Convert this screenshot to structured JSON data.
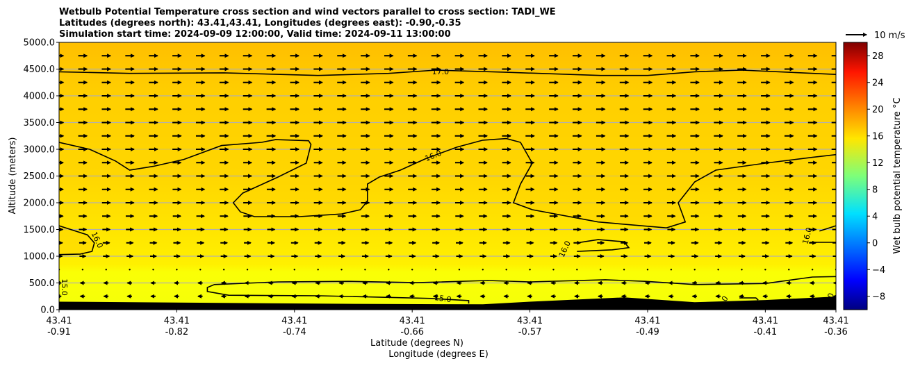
{
  "chart_data": {
    "type": "heatmap",
    "title_lines": [
      "Wetbulb Potential Temperature cross section and wind vectors parallel to cross section: TADI_WE",
      "Latitudes (degrees north): 43.41,43.41, Longitudes (degrees east): -0.90,-0.35",
      "Simulation start time: 2024-09-09 12:00:00, Valid time: 2024-09-11 13:00:00"
    ],
    "ylabel": "Altitude (meters)",
    "xlabel_lines": [
      "Latitude (degrees N)",
      "Longitude (degrees E)"
    ],
    "x_unit": "section point index",
    "xlim": [
      0,
      33
    ],
    "ylim": [
      0,
      5000
    ],
    "yticks": [
      "0.0",
      "500.0",
      "1000.0",
      "1500.0",
      "2000.0",
      "2500.0",
      "3000.0",
      "3500.0",
      "4000.0",
      "4500.0",
      "5000.0"
    ],
    "xticks": [
      {
        "x": 0,
        "lat": "43.41",
        "lon": "-0.91"
      },
      {
        "x": 5,
        "lat": "43.41",
        "lon": "-0.82"
      },
      {
        "x": 10,
        "lat": "43.41",
        "lon": "-0.74"
      },
      {
        "x": 15,
        "lat": "43.41",
        "lon": "-0.66"
      },
      {
        "x": 20,
        "lat": "43.41",
        "lon": "-0.57"
      },
      {
        "x": 25,
        "lat": "43.41",
        "lon": "-0.49"
      },
      {
        "x": 30,
        "lat": "43.41",
        "lon": "-0.41"
      },
      {
        "x": 33,
        "lat": "43.41",
        "lon": "-0.36"
      }
    ],
    "grid": "horizontal",
    "colorbar": {
      "label": "Wet bulb potential temperature $^\\circ$C",
      "label_text": "Wet bulb potential temperature °C",
      "range": [
        -10,
        30
      ],
      "ticks": [
        "-8",
        "-4",
        "0",
        "4",
        "8",
        "12",
        "16",
        "20",
        "24",
        "28"
      ],
      "colormap": "jet"
    },
    "field_profile": [
      {
        "alt": 0,
        "value": 14.6
      },
      {
        "alt": 700,
        "value": 14.8
      },
      {
        "alt": 850,
        "value": 15.6
      },
      {
        "alt": 1500,
        "value": 16.0
      },
      {
        "alt": 2500,
        "value": 16.6
      },
      {
        "alt": 4000,
        "value": 16.9
      },
      {
        "alt": 5000,
        "value": 17.5
      }
    ],
    "wind_key": {
      "label": "10 m/s",
      "speed": 10
    },
    "wind_rows": [
      {
        "alt": 4750,
        "u": 4.2
      },
      {
        "alt": 4500,
        "u": 4.2
      },
      {
        "alt": 4250,
        "u": 4.2
      },
      {
        "alt": 4000,
        "u": 4.2
      },
      {
        "alt": 3750,
        "u": 4.2
      },
      {
        "alt": 3500,
        "u": 4.2
      },
      {
        "alt": 3250,
        "u": 4.2
      },
      {
        "alt": 3000,
        "u": 4.2
      },
      {
        "alt": 2750,
        "u": 4.0
      },
      {
        "alt": 2500,
        "u": 4.0
      },
      {
        "alt": 2250,
        "u": 4.0
      },
      {
        "alt": 2000,
        "u": 4.0
      },
      {
        "alt": 1750,
        "u": 3.8
      },
      {
        "alt": 1500,
        "u": 3.6
      },
      {
        "alt": 1250,
        "u": 3.3
      },
      {
        "alt": 1000,
        "u": 3.0
      },
      {
        "alt": 750,
        "u": 0.3
      },
      {
        "alt": 500,
        "u": -2.2
      },
      {
        "alt": 250,
        "u": -2.2
      }
    ],
    "terrain": [
      [
        0,
        150
      ],
      [
        6,
        130
      ],
      [
        12,
        110
      ],
      [
        18,
        100
      ],
      [
        20,
        150
      ],
      [
        24,
        230
      ],
      [
        27,
        140
      ],
      [
        30,
        180
      ],
      [
        33,
        245
      ]
    ],
    "contours": [
      {
        "level": "17.0",
        "label_at": [
          16.2,
          4440
        ],
        "label_rot": 0,
        "points": [
          [
            0,
            4450
          ],
          [
            3,
            4420
          ],
          [
            7,
            4430
          ],
          [
            11,
            4380
          ],
          [
            14,
            4420
          ],
          [
            16,
            4480
          ],
          [
            19,
            4440
          ],
          [
            23,
            4380
          ],
          [
            25,
            4380
          ],
          [
            27,
            4450
          ],
          [
            29,
            4480
          ],
          [
            31,
            4440
          ],
          [
            33,
            4400
          ]
        ]
      },
      {
        "level": "16.0",
        "fill": true,
        "label_at": [
          15.9,
          2870
        ],
        "label_rot": -22,
        "points": [
          [
            0,
            3130
          ],
          [
            1.3,
            3000
          ],
          [
            2.4,
            2780
          ],
          [
            3,
            2610
          ],
          [
            4,
            2680
          ],
          [
            5.3,
            2810
          ],
          [
            6.9,
            3070
          ],
          [
            8.6,
            3130
          ],
          [
            9.2,
            3180
          ],
          [
            10.6,
            3160
          ],
          [
            10.7,
            3090
          ],
          [
            10.5,
            2740
          ],
          [
            9.3,
            2480
          ],
          [
            7.8,
            2180
          ],
          [
            7.4,
            2000
          ],
          [
            7.7,
            1830
          ],
          [
            8.3,
            1740
          ],
          [
            10.2,
            1740
          ],
          [
            12,
            1790
          ],
          [
            12.8,
            1870
          ],
          [
            13.1,
            2030
          ],
          [
            13.1,
            2350
          ],
          [
            13.6,
            2480
          ],
          [
            14.5,
            2610
          ],
          [
            15.6,
            2830
          ],
          [
            16.9,
            3040
          ],
          [
            18,
            3170
          ],
          [
            19,
            3200
          ],
          [
            19.6,
            3130
          ],
          [
            20.1,
            2740
          ],
          [
            19.6,
            2350
          ],
          [
            19.3,
            2000
          ],
          [
            20.1,
            1870
          ],
          [
            22.9,
            1640
          ],
          [
            25.8,
            1530
          ],
          [
            26.6,
            1640
          ],
          [
            26.3,
            2000
          ],
          [
            27,
            2390
          ],
          [
            27.9,
            2610
          ],
          [
            30,
            2740
          ],
          [
            32,
            2850
          ],
          [
            33,
            2900
          ]
        ]
      },
      {
        "level": "16.0",
        "fill": true,
        "label_at": [
          1.6,
          1300
        ],
        "label_rot": 65,
        "points": [
          [
            0,
            1570
          ],
          [
            1.2,
            1400
          ],
          [
            1.5,
            1250
          ],
          [
            1.4,
            1090
          ],
          [
            0.9,
            1040
          ],
          [
            0,
            1030
          ]
        ]
      },
      {
        "level": "16.0",
        "label_at": [
          21.5,
          1130
        ],
        "label_rot": -65,
        "points": [
          [
            22,
            1090
          ],
          [
            23.5,
            1120
          ],
          [
            24.2,
            1160
          ],
          [
            24,
            1270
          ],
          [
            22.9,
            1310
          ],
          [
            22,
            1250
          ]
        ]
      },
      {
        "level": "16.0",
        "label_at": [
          31.8,
          1380
        ],
        "label_rot": -75,
        "points": [
          [
            33,
            1570
          ],
          [
            32.3,
            1470
          ]
        ]
      },
      {
        "level": "16.0",
        "points": [
          [
            31.9,
            1260
          ],
          [
            33,
            1260
          ]
        ]
      },
      {
        "level": "15.0",
        "label_at": [
          16.3,
          200
        ],
        "label_rot": 8,
        "points": [
          [
            17.4,
            115
          ],
          [
            17.4,
            170
          ],
          [
            15.8,
            210
          ],
          [
            14,
            230
          ],
          [
            11.1,
            260
          ],
          [
            7.2,
            270
          ],
          [
            6.3,
            340
          ],
          [
            6.3,
            415
          ],
          [
            6.6,
            470
          ],
          [
            9.3,
            520
          ],
          [
            12.3,
            530
          ],
          [
            15.2,
            505
          ],
          [
            18.2,
            545
          ],
          [
            20,
            520
          ],
          [
            23.2,
            560
          ],
          [
            24.9,
            530
          ],
          [
            27,
            470
          ],
          [
            30,
            490
          ],
          [
            32,
            610
          ],
          [
            33,
            620
          ]
        ]
      },
      {
        "level": "15.0",
        "label_at": [
          0.2,
          420
        ],
        "label_rot": 90,
        "points": []
      },
      {
        "level": "15.0",
        "label_at": [
          28.3,
          200
        ],
        "label_rot": -60,
        "label_text": "0",
        "points": [
          [
            28.9,
            220
          ],
          [
            29.6,
            220
          ],
          [
            29.7,
            180
          ]
        ]
      },
      {
        "level": "15.0",
        "label_at": [
          32.8,
          260
        ],
        "label_rot": -70,
        "label_text": "0",
        "points": []
      }
    ]
  }
}
